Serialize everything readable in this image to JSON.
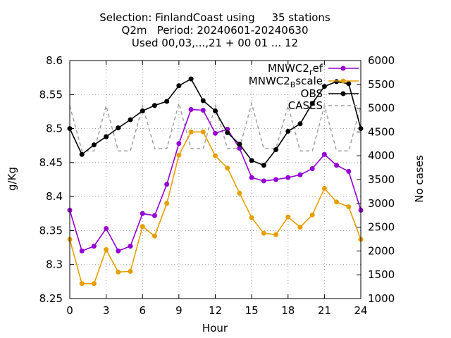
{
  "chart_data": {
    "type": "line",
    "title_lines": [
      "Selection: FinlandCoast using     35 stations",
      "Q2m   Period: 20240601-20240630",
      "Used 00,03,...,21 + 00 01 ... 12"
    ],
    "xlabel": "Hour",
    "ylabel": "g/Kg",
    "y2label": "No cases",
    "xlim": [
      0,
      24
    ],
    "ylim": [
      8.25,
      8.6
    ],
    "y2lim": [
      1000,
      6000
    ],
    "xticks": [
      "0",
      "3",
      "6",
      "9",
      "12",
      "15",
      "18",
      "21",
      "24"
    ],
    "yticks": [
      "8.25",
      "8.3",
      "8.35",
      "8.4",
      "8.45",
      "8.5",
      "8.55",
      "8.6"
    ],
    "y2ticks": [
      "1000",
      "1500",
      "2000",
      "2500",
      "3000",
      "3500",
      "4000",
      "4500",
      "5000",
      "5500",
      "6000"
    ],
    "legend_position": "top-right",
    "grid": true,
    "series": [
      {
        "name_main": "MNWC2",
        "name_sub": "r",
        "name_tail": "ef",
        "color": "#9400d3",
        "marker": "circle",
        "axis": "y",
        "x": [
          0,
          1,
          2,
          3,
          4,
          5,
          6,
          7,
          8,
          9,
          10,
          11,
          12,
          13,
          14,
          15,
          16,
          17,
          18,
          19,
          20,
          21,
          22,
          23,
          24
        ],
        "values": [
          8.38,
          8.32,
          8.327,
          8.353,
          8.32,
          8.327,
          8.375,
          8.372,
          8.418,
          8.478,
          8.528,
          8.527,
          8.493,
          8.499,
          8.471,
          8.428,
          8.423,
          8.425,
          8.428,
          8.432,
          8.441,
          8.462,
          8.446,
          8.437,
          8.38
        ]
      },
      {
        "name_main": "MNWC2",
        "name_sub": "B",
        "name_tail": "scale",
        "color": "#e69f00",
        "marker": "circle",
        "axis": "y",
        "x": [
          0,
          1,
          2,
          3,
          4,
          5,
          6,
          7,
          8,
          9,
          10,
          11,
          12,
          13,
          14,
          15,
          16,
          17,
          18,
          19,
          20,
          21,
          22,
          23,
          24
        ],
        "values": [
          8.337,
          8.272,
          8.272,
          8.322,
          8.289,
          8.29,
          8.356,
          8.342,
          8.39,
          8.461,
          8.495,
          8.495,
          8.46,
          8.442,
          8.405,
          8.369,
          8.346,
          8.344,
          8.37,
          8.355,
          8.373,
          8.412,
          8.392,
          8.385,
          8.337
        ]
      },
      {
        "name": "OBS",
        "color": "#000000",
        "marker": "circle",
        "axis": "y",
        "x": [
          0,
          1,
          2,
          3,
          4,
          5,
          6,
          7,
          8,
          9,
          10,
          11,
          12,
          13,
          14,
          15,
          16,
          17,
          18,
          19,
          20,
          21,
          22,
          23,
          24
        ],
        "values": [
          8.5,
          8.462,
          8.476,
          8.488,
          8.501,
          8.513,
          8.526,
          8.534,
          8.54,
          8.563,
          8.573,
          8.541,
          8.526,
          8.494,
          8.477,
          8.453,
          8.446,
          8.469,
          8.496,
          8.507,
          8.537,
          8.562,
          8.569,
          8.566,
          8.5
        ]
      },
      {
        "name": "CASES",
        "color": "#a0a0a0",
        "dashed": true,
        "axis": "y2",
        "x": [
          0,
          1,
          2,
          3,
          4,
          5,
          6,
          7,
          8,
          9,
          10,
          11,
          12,
          13,
          14,
          15,
          16,
          17,
          18,
          19,
          20,
          21,
          22,
          23,
          24
        ],
        "values": [
          5050,
          4100,
          4100,
          5050,
          4100,
          4100,
          5050,
          4150,
          4150,
          5100,
          4150,
          4150,
          5050,
          4150,
          4150,
          5100,
          4150,
          4150,
          5050,
          4100,
          4100,
          5050,
          4100,
          4100,
          5050
        ]
      }
    ]
  }
}
